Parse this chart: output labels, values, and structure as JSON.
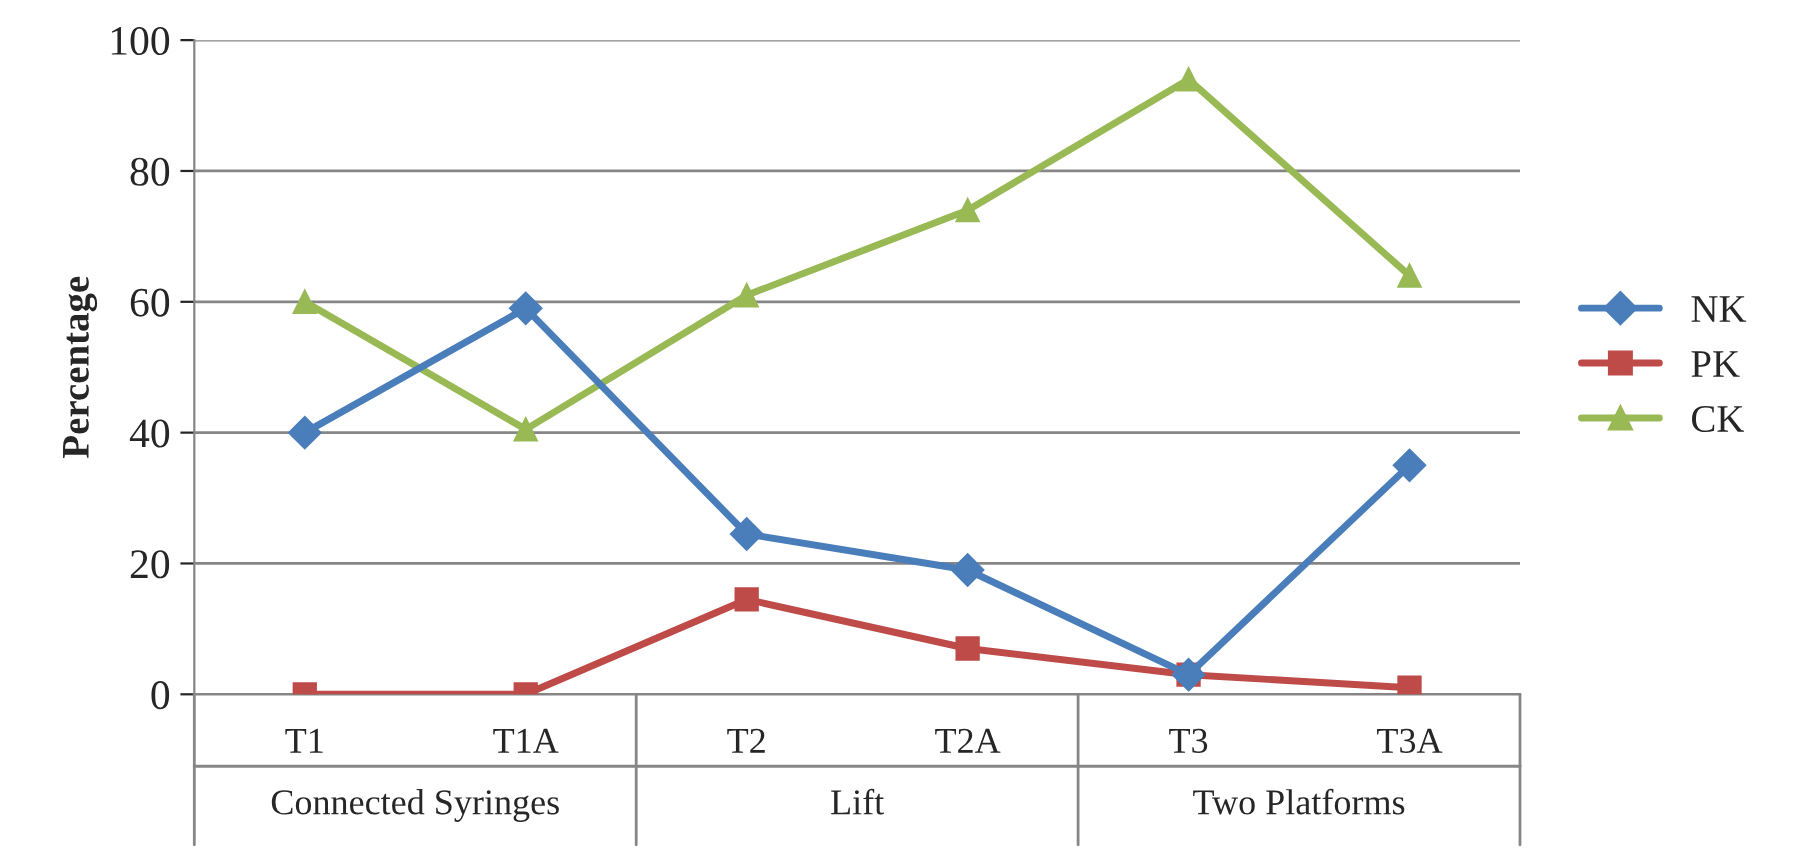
{
  "chart_data": {
    "type": "line",
    "ylabel": "Percentage",
    "categories": [
      "T1",
      "T1A",
      "T2",
      "T2A",
      "T3",
      "T3A"
    ],
    "annotations": [
      "Connected Syringes",
      "Lift",
      "Two Platforms"
    ],
    "series": [
      {
        "name": "NK",
        "color": "#4a7ebb",
        "marker": "diamond",
        "values": [
          40,
          59,
          24.5,
          19,
          3,
          35
        ]
      },
      {
        "name": "PK",
        "color": "#be4b48",
        "marker": "square",
        "values": [
          0,
          0,
          14.5,
          7,
          3,
          1
        ]
      },
      {
        "name": "CK",
        "color": "#98b954",
        "marker": "triangle",
        "values": [
          60,
          40.5,
          61,
          74,
          94,
          64
        ]
      }
    ],
    "ylim": [
      0,
      100
    ],
    "yticks": [
      0,
      20,
      40,
      60,
      80,
      100
    ],
    "grid": "y",
    "legend": "right",
    "line_style": "solid"
  }
}
